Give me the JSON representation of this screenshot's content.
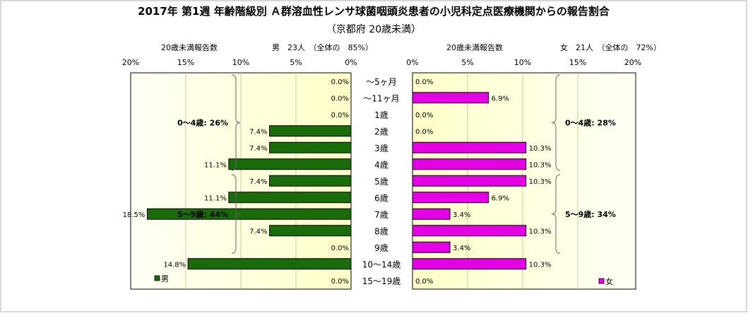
{
  "chart_data": {
    "type": "bar",
    "title": "2017年 第1週 年齢階級別 Ａ群溶血性レンサ球菌咽頭炎患者の小児科定点医療機関からの報告割合",
    "subtitle": "（京都府 20歳未満）",
    "categories": [
      "～5ヶ月",
      "～11ヶ月",
      "1歳",
      "2歳",
      "3歳",
      "4歳",
      "5歳",
      "6歳",
      "7歳",
      "8歳",
      "9歳",
      "10～14歳",
      "15～19歳"
    ],
    "xlim": [
      0,
      20
    ],
    "ticks": [
      "0%",
      "5%",
      "10%",
      "15%",
      "20%"
    ],
    "male": {
      "name": "男",
      "header_label": "20歳未満報告数",
      "header_text": "男　23人　（全体の　85%）",
      "color": "#1a6b0a",
      "values": [
        0.0,
        0.0,
        0.0,
        7.4,
        7.4,
        11.1,
        7.4,
        11.1,
        18.5,
        7.4,
        0.0,
        14.8,
        0.0
      ],
      "value_labels": [
        "0.0%",
        "0.0%",
        "0.0%",
        "7.4%",
        "7.4%",
        "11.1%",
        "7.4%",
        "11.1%",
        "18.5%",
        "7.4%",
        "0.0%",
        "14.8%",
        "0.0%"
      ],
      "groups": [
        {
          "label": "0～4歳: 26%",
          "from": 0,
          "to": 5
        },
        {
          "label": "5～9歳: 44%",
          "from": 6,
          "to": 10
        }
      ]
    },
    "female": {
      "name": "女",
      "header_label": "20歳未満報告数",
      "header_text": "女　21人　（全体の　72%）",
      "color": "#e600e6",
      "values": [
        0.0,
        6.9,
        0.0,
        0.0,
        10.3,
        10.3,
        10.3,
        6.9,
        3.4,
        10.3,
        3.4,
        10.3,
        0.0
      ],
      "value_labels": [
        "0.0%",
        "6.9%",
        "0.0%",
        "0.0%",
        "10.3%",
        "10.3%",
        "10.3%",
        "6.9%",
        "3.4%",
        "10.3%",
        "3.4%",
        "10.3%",
        "0.0%"
      ],
      "groups": [
        {
          "label": "0～4歳: 28%",
          "from": 0,
          "to": 5
        },
        {
          "label": "5～9歳: 34%",
          "from": 6,
          "to": 10
        }
      ]
    }
  }
}
